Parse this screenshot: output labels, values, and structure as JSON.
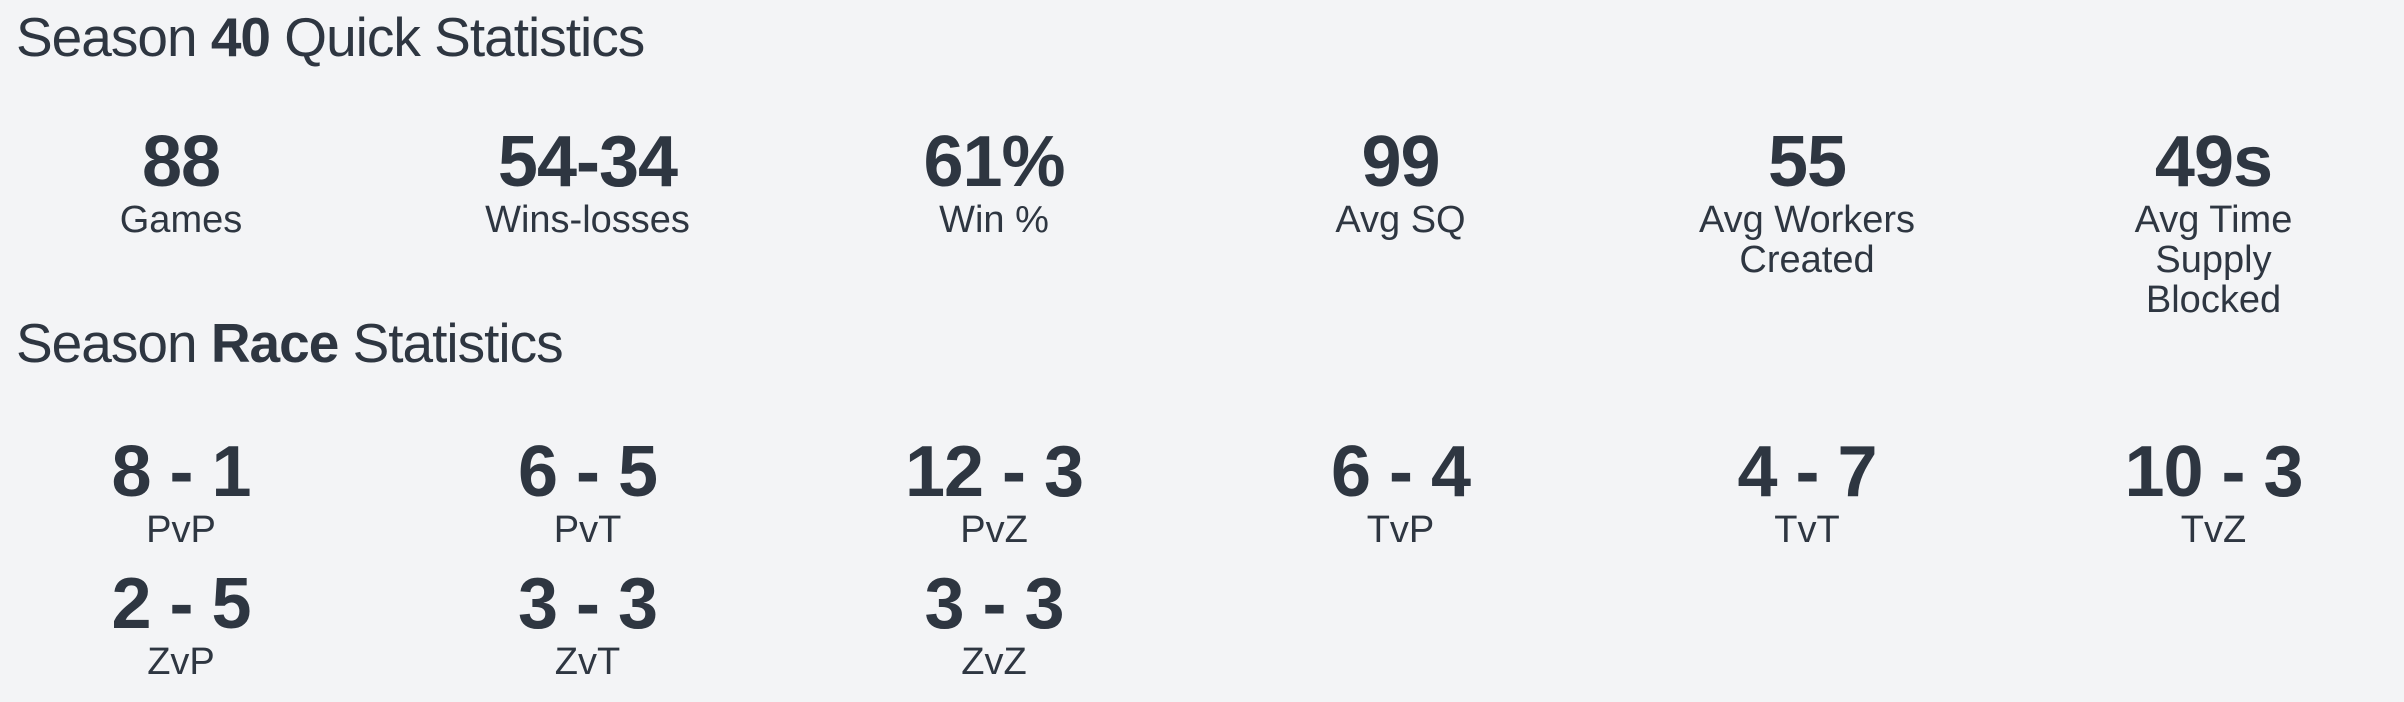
{
  "quick": {
    "title_prefix": "Season",
    "title_bold": "40",
    "title_suffix": "Quick Statistics",
    "stats": [
      {
        "value": "88",
        "label": "Games"
      },
      {
        "value": "54-34",
        "label": "Wins-losses"
      },
      {
        "value": "61%",
        "label": "Win %"
      },
      {
        "value": "99",
        "label": "Avg SQ"
      },
      {
        "value": "55",
        "label": "Avg Workers Created"
      },
      {
        "value": "49s",
        "label": "Avg Time Supply Blocked"
      }
    ]
  },
  "race": {
    "title_prefix": "Season",
    "title_bold": "Race",
    "title_suffix": "Statistics",
    "stats": [
      {
        "value": "8 - 1",
        "label": "PvP"
      },
      {
        "value": "6 - 5",
        "label": "PvT"
      },
      {
        "value": "12 - 3",
        "label": "PvZ"
      },
      {
        "value": "6 - 4",
        "label": "TvP"
      },
      {
        "value": "4 - 7",
        "label": "TvT"
      },
      {
        "value": "10 - 3",
        "label": "TvZ"
      },
      {
        "value": "2 - 5",
        "label": "ZvP"
      },
      {
        "value": "3 - 3",
        "label": "ZvT"
      },
      {
        "value": "3 - 3",
        "label": "ZvZ"
      }
    ]
  }
}
